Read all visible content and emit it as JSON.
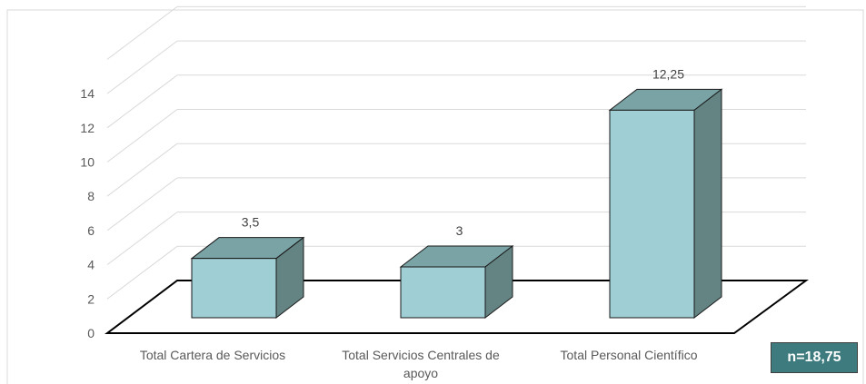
{
  "chart_data": {
    "type": "bar",
    "categories": [
      [
        "Total Cartera de Servicios"
      ],
      [
        "Total Servicios Centrales de",
        "apoyo"
      ],
      [
        "Total Personal Científico"
      ]
    ],
    "values": [
      3.5,
      3,
      12.25
    ],
    "data_labels": [
      "3,5",
      "3",
      "12,25"
    ],
    "yticks": [
      "0",
      "2",
      "4",
      "6",
      "8",
      "10",
      "12",
      "14"
    ],
    "ylim": [
      0,
      14
    ],
    "grid": true,
    "three_d": true,
    "title": "",
    "xlabel": "",
    "ylabel": ""
  },
  "annotation": {
    "label": "n=18,75"
  },
  "colors": {
    "bar_front": "#9FCFD4",
    "bar_top": "#7AA3A6",
    "bar_side": "#648383",
    "badge": "#3E7B7E",
    "grid": "#D9D9D9"
  }
}
